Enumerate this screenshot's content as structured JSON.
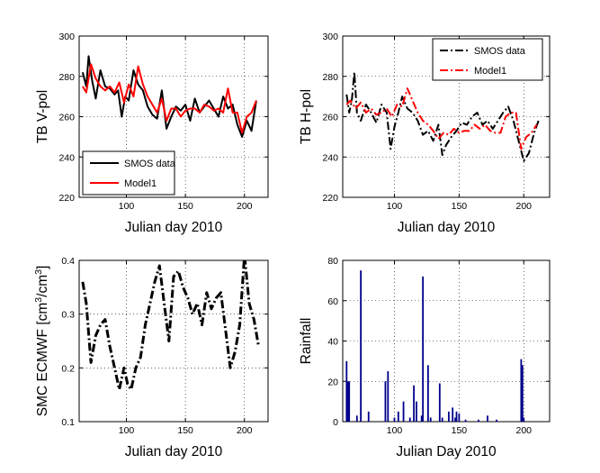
{
  "colors": {
    "black": "#000000",
    "red": "#ff0000",
    "navy": "#00008b"
  },
  "chart_data": [
    {
      "id": "tbv",
      "type": "line",
      "xlabel": "Julian day 2010",
      "ylabel": "TB V-pol",
      "xlim": [
        60,
        220
      ],
      "ylim": [
        220,
        300
      ],
      "xticks": [
        100,
        150,
        200
      ],
      "yticks": [
        220,
        240,
        260,
        280,
        300
      ],
      "grid": true,
      "legend_position": "bottom-left",
      "series": [
        {
          "name": "SMOS data",
          "style": "solid",
          "color": "#000000",
          "width": 2,
          "x": [
            63,
            66,
            68,
            71,
            74,
            78,
            82,
            86,
            90,
            93,
            96,
            99,
            102,
            106,
            110,
            114,
            118,
            122,
            126,
            130,
            134,
            138,
            142,
            146,
            150,
            154,
            158,
            162,
            166,
            170,
            174,
            178,
            182,
            186,
            190,
            194,
            198,
            202,
            206,
            210
          ],
          "y": [
            282,
            275,
            290,
            278,
            269,
            283,
            275,
            274,
            271,
            273,
            260,
            270,
            268,
            283,
            276,
            273,
            265,
            261,
            259,
            273,
            254,
            260,
            265,
            263,
            266,
            258,
            269,
            262,
            265,
            268,
            264,
            260,
            270,
            264,
            266,
            256,
            250,
            258,
            253,
            268
          ]
        },
        {
          "name": "Model1",
          "style": "solid",
          "color": "#ff0000",
          "width": 2,
          "x": [
            63,
            66,
            70,
            74,
            78,
            82,
            86,
            90,
            94,
            98,
            102,
            106,
            110,
            114,
            118,
            122,
            126,
            130,
            134,
            138,
            142,
            146,
            150,
            154,
            158,
            162,
            166,
            170,
            174,
            178,
            182,
            186,
            190,
            194,
            198,
            202,
            206,
            210
          ],
          "y": [
            275,
            272,
            286,
            279,
            275,
            273,
            275,
            272,
            277,
            267,
            276,
            270,
            285,
            276,
            270,
            266,
            262,
            269,
            258,
            264,
            264,
            260,
            263,
            264,
            264,
            262,
            266,
            265,
            263,
            264,
            262,
            274,
            262,
            262,
            252,
            260,
            262,
            268
          ]
        }
      ]
    },
    {
      "id": "tbh",
      "type": "line",
      "xlabel": "Julian day 2010",
      "ylabel": "TB H-pol",
      "xlim": [
        60,
        220
      ],
      "ylim": [
        220,
        300
      ],
      "xticks": [
        100,
        150,
        200
      ],
      "yticks": [
        220,
        240,
        260,
        280,
        300
      ],
      "grid": true,
      "legend_position": "top-right",
      "series": [
        {
          "name": "SMOS data",
          "style": "dashdot",
          "color": "#000000",
          "width": 2,
          "x": [
            63,
            65,
            67,
            69,
            71,
            74,
            78,
            82,
            86,
            90,
            94,
            97,
            100,
            103,
            106,
            110,
            114,
            118,
            122,
            126,
            130,
            134,
            137,
            140,
            144,
            148,
            152,
            156,
            160,
            164,
            168,
            172,
            176,
            180,
            184,
            188,
            192,
            196,
            200,
            204,
            208,
            212
          ],
          "y": [
            271,
            262,
            268,
            282,
            262,
            258,
            266,
            262,
            257,
            266,
            262,
            244,
            255,
            262,
            270,
            264,
            262,
            258,
            251,
            253,
            248,
            256,
            241,
            246,
            250,
            253,
            257,
            256,
            260,
            262,
            256,
            258,
            254,
            258,
            262,
            265,
            258,
            248,
            238,
            242,
            252,
            259
          ]
        },
        {
          "name": "Model1",
          "style": "dashdot",
          "color": "#ff0000",
          "width": 2,
          "x": [
            63,
            66,
            70,
            74,
            78,
            82,
            86,
            90,
            94,
            98,
            102,
            106,
            110,
            114,
            118,
            122,
            126,
            130,
            134,
            138,
            142,
            146,
            150,
            154,
            158,
            162,
            166,
            170,
            174,
            178,
            182,
            186,
            190,
            194,
            198,
            202,
            206,
            210
          ],
          "y": [
            266,
            268,
            264,
            267,
            262,
            264,
            261,
            262,
            264,
            260,
            266,
            265,
            274,
            268,
            262,
            258,
            256,
            253,
            249,
            252,
            251,
            254,
            252,
            253,
            253,
            256,
            254,
            256,
            253,
            252,
            252,
            260,
            262,
            262,
            244,
            250,
            252,
            256
          ]
        }
      ]
    },
    {
      "id": "smc",
      "type": "line",
      "xlabel": "Julian day 2010",
      "ylabel": "SMC ECMWF [cm3/cm3]",
      "ylabel_parts": {
        "base": "SMC ECMWF [cm",
        "sup1": "3",
        "mid": "/cm",
        "sup2": "3",
        "end": "]"
      },
      "xlim": [
        60,
        220
      ],
      "ylim": [
        0.1,
        0.4
      ],
      "xticks": [
        100,
        150,
        200
      ],
      "yticks": [
        0.1,
        0.2,
        0.3,
        0.4
      ],
      "grid": true,
      "series": [
        {
          "style": "dashdot",
          "color": "#000000",
          "width": 3,
          "x": [
            63,
            66,
            70,
            74,
            78,
            82,
            86,
            90,
            94,
            98,
            101,
            104,
            108,
            112,
            116,
            120,
            124,
            128,
            132,
            136,
            140,
            144,
            148,
            152,
            156,
            160,
            164,
            168,
            172,
            176,
            180,
            184,
            188,
            192,
            196,
            200,
            204,
            208,
            212
          ],
          "y": [
            0.36,
            0.32,
            0.21,
            0.26,
            0.28,
            0.29,
            0.24,
            0.2,
            0.16,
            0.2,
            0.17,
            0.16,
            0.2,
            0.22,
            0.28,
            0.32,
            0.36,
            0.39,
            0.32,
            0.25,
            0.37,
            0.38,
            0.35,
            0.33,
            0.3,
            0.32,
            0.28,
            0.34,
            0.31,
            0.33,
            0.34,
            0.27,
            0.2,
            0.23,
            0.28,
            0.41,
            0.32,
            0.29,
            0.24
          ]
        }
      ]
    },
    {
      "id": "rain",
      "type": "bar",
      "xlabel": "Julian Day 2010",
      "ylabel": "Rainfall",
      "xlim": [
        60,
        220
      ],
      "ylim": [
        0,
        80
      ],
      "xticks": [
        100,
        150,
        200
      ],
      "yticks": [
        0,
        20,
        40,
        60,
        80
      ],
      "grid": true,
      "color": "#00008b",
      "x": [
        63,
        64,
        65,
        71,
        74,
        80,
        93,
        95,
        100,
        103,
        107,
        112,
        115,
        117,
        121,
        122,
        126,
        128,
        135,
        137,
        142,
        145,
        147,
        148,
        150,
        155,
        165,
        172,
        179,
        198,
        199,
        200
      ],
      "y": [
        30,
        20,
        20,
        3,
        75,
        5,
        20,
        25,
        2,
        5,
        10,
        2,
        18,
        10,
        3,
        72,
        28,
        2,
        19,
        2,
        5,
        7,
        2,
        5,
        4,
        1,
        1,
        3,
        1,
        31,
        28,
        2
      ]
    }
  ]
}
